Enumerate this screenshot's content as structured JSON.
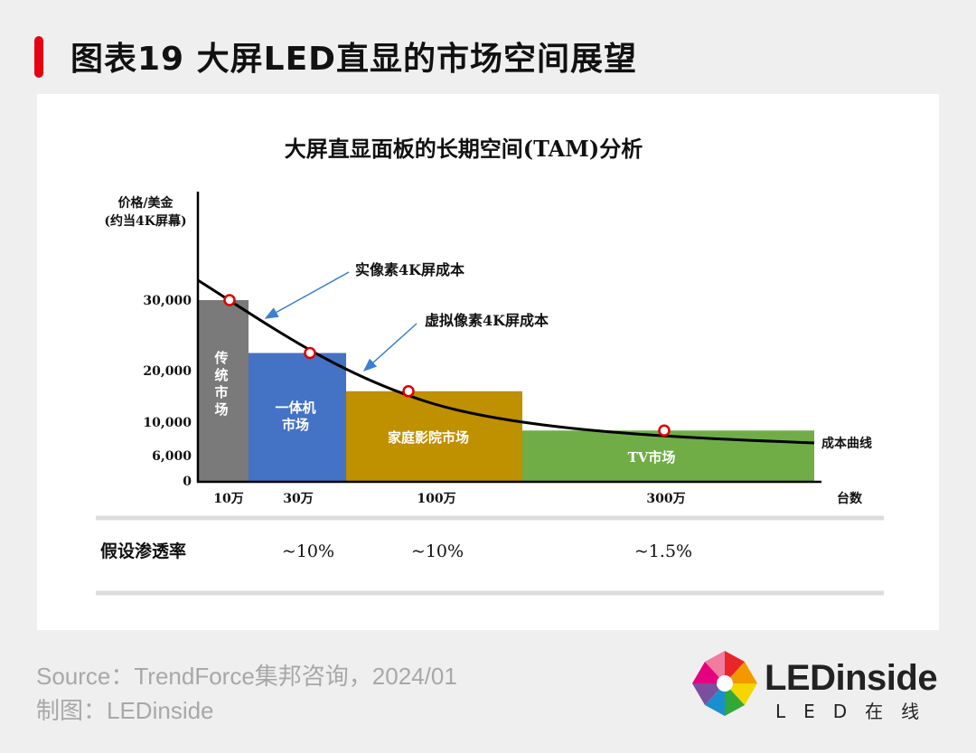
{
  "header": {
    "title": "图表19 大屏LED直显的市场空间展望"
  },
  "chart_data": {
    "type": "bar",
    "title": "大屏直显面板的长期空间(TAM)分析",
    "ylabel": [
      "价格/美金",
      "(约当4K屏幕)"
    ],
    "xlabel": "台数",
    "y_ticks": [
      {
        "label": "30,000",
        "value": 30000
      },
      {
        "label": "20,000",
        "value": 20000
      },
      {
        "label": "10,000",
        "value": 10000
      },
      {
        "label": "6,000",
        "value": 6000
      },
      {
        "label": "0",
        "value": 0
      }
    ],
    "x_ticks": [
      "10万",
      "30万",
      "100万",
      "300万"
    ],
    "segments": [
      {
        "name": "传统市场",
        "label_lines": [
          "传",
          "统",
          "市",
          "场"
        ],
        "value": 30000,
        "color": "#7a7a7a"
      },
      {
        "name": "一体机市场",
        "label_lines": [
          "一体机",
          "市场"
        ],
        "value": 22500,
        "color": "#4472c4"
      },
      {
        "name": "家庭影院市场",
        "label_lines": [
          "家庭影院市场"
        ],
        "value": 16000,
        "color": "#bf9000"
      },
      {
        "name": "TV市场",
        "label_lines": [
          "TV市场"
        ],
        "value": 9000,
        "color": "#70ad47"
      }
    ],
    "cost_curve": {
      "label": "成本曲线"
    },
    "annotations": [
      "实像素4K屏成本",
      "虚拟像素4K屏成本"
    ],
    "penetration": {
      "label": "假设渗透率",
      "values": [
        "~10%",
        "~10%",
        "~1.5%"
      ]
    }
  },
  "footer": {
    "source": "Source：TrendForce集邦咨询，2024/01",
    "credit": "制图：LEDinside"
  },
  "logo": {
    "brand": "LEDinside",
    "sub": "LED在线"
  }
}
